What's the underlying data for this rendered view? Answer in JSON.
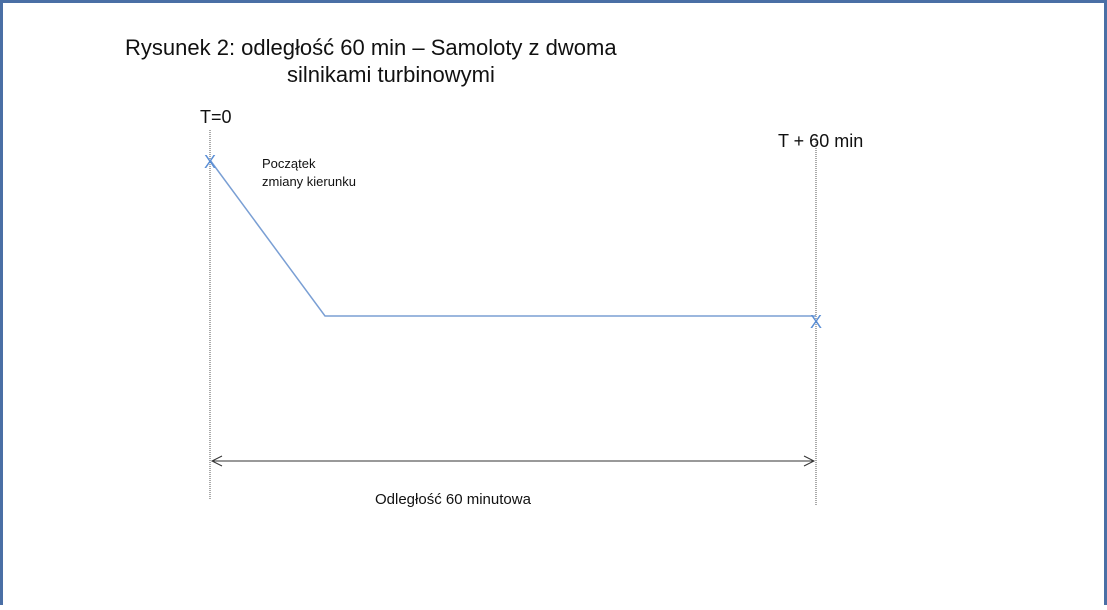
{
  "title_line1": "Rysunek 2: odległość 60 min – Samoloty z dwoma",
  "title_line2": "silnikami turbinowymi",
  "label_start_time": "T=0",
  "label_end_time": "T + 60 min",
  "start_label_line1": "Początek",
  "start_label_line2": "zmiany kierunku",
  "distance_label": "Odległość 60 minutowa"
}
